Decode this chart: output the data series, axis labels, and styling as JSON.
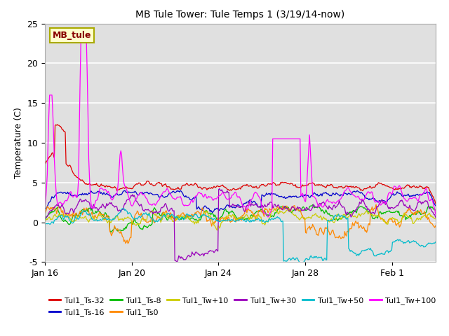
{
  "title": "MB Tule Tower: Tule Temps 1 (3/19/14-now)",
  "ylabel": "Temperature (C)",
  "ylim": [
    -5,
    25
  ],
  "yticks": [
    -5,
    0,
    5,
    10,
    15,
    20,
    25
  ],
  "xtick_labels": [
    "Jan 16",
    "Jan 20",
    "Jan 24",
    "Jan 28",
    "Feb 1"
  ],
  "xtick_positions": [
    0,
    4,
    8,
    12,
    16
  ],
  "xlim": [
    0,
    18
  ],
  "background_color": "#ffffff",
  "plot_bg_color": "#e0e0e0",
  "legend_label": "MB_tule",
  "legend_bg": "#ffffcc",
  "legend_border": "#aaaa00",
  "legend_text_color": "#880000",
  "series": [
    {
      "name": "Tul1_Ts-32",
      "color": "#dd0000"
    },
    {
      "name": "Tul1_Ts-16",
      "color": "#0000cc"
    },
    {
      "name": "Tul1_Ts-8",
      "color": "#00bb00"
    },
    {
      "name": "Tul1_Ts0",
      "color": "#ff8800"
    },
    {
      "name": "Tul1_Tw+10",
      "color": "#cccc00"
    },
    {
      "name": "Tul1_Tw+30",
      "color": "#9900bb"
    },
    {
      "name": "Tul1_Tw+50",
      "color": "#00bbcc"
    },
    {
      "name": "Tul1_Tw+100",
      "color": "#ff00ff"
    }
  ]
}
